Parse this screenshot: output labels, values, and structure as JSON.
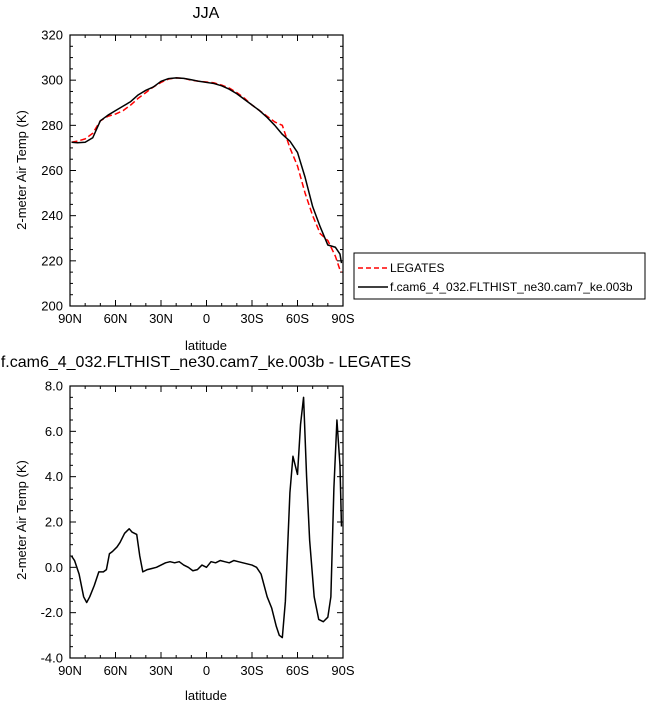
{
  "chart_data": [
    {
      "type": "line",
      "title": "JJA",
      "xlabel": "latitude",
      "ylabel": "2-meter Air Temp (K)",
      "xlim": [
        90,
        -90
      ],
      "ylim": [
        200,
        320
      ],
      "xticks": [
        90,
        60,
        30,
        0,
        -30,
        -60,
        -90
      ],
      "xtick_labels": [
        "90N",
        "60N",
        "30N",
        "0",
        "30S",
        "60S",
        "90S"
      ],
      "yticks": [
        200,
        220,
        240,
        260,
        280,
        300,
        320
      ],
      "ytick_labels": [
        "200",
        "220",
        "240",
        "260",
        "280",
        "300",
        "320"
      ],
      "legend_position": "outside-right",
      "series": [
        {
          "name": "LEGATES",
          "color": "#ff0000",
          "dash": "dashed",
          "points": [
            [
              89,
              272.5
            ],
            [
              85,
              273
            ],
            [
              80,
              274
            ],
            [
              75,
              276.5
            ],
            [
              70,
              282
            ],
            [
              65,
              284
            ],
            [
              60,
              285
            ],
            [
              55,
              286.5
            ],
            [
              50,
              289
            ],
            [
              45,
              292
            ],
            [
              40,
              294.5
            ],
            [
              35,
              297
            ],
            [
              30,
              299
            ],
            [
              25,
              300.5
            ],
            [
              20,
              301
            ],
            [
              15,
              300.8
            ],
            [
              10,
              300
            ],
            [
              5,
              299.5
            ],
            [
              0,
              299.2
            ],
            [
              -5,
              298.8
            ],
            [
              -10,
              297.8
            ],
            [
              -15,
              296.5
            ],
            [
              -20,
              294.5
            ],
            [
              -25,
              292
            ],
            [
              -30,
              289
            ],
            [
              -35,
              286.5
            ],
            [
              -40,
              284
            ],
            [
              -45,
              281.5
            ],
            [
              -50,
              280
            ],
            [
              -55,
              270
            ],
            [
              -60,
              262
            ],
            [
              -65,
              250
            ],
            [
              -70,
              240
            ],
            [
              -75,
              232
            ],
            [
              -80,
              229
            ],
            [
              -85,
              222
            ],
            [
              -88,
              216
            ],
            [
              -89,
              215
            ]
          ]
        },
        {
          "name": "f.cam6_4_032.FLTHIST_ne30.cam7_ke.003b",
          "color": "#000000",
          "dash": "solid",
          "points": [
            [
              89,
              272.5
            ],
            [
              85,
              272.3
            ],
            [
              80,
              272.5
            ],
            [
              75,
              274.5
            ],
            [
              70,
              282
            ],
            [
              65,
              284.5
            ],
            [
              60,
              286.5
            ],
            [
              55,
              288.5
            ],
            [
              50,
              290.5
            ],
            [
              45,
              293.5
            ],
            [
              40,
              295.5
            ],
            [
              35,
              297
            ],
            [
              30,
              299.5
            ],
            [
              25,
              300.7
            ],
            [
              20,
              301
            ],
            [
              15,
              300.8
            ],
            [
              10,
              300.2
            ],
            [
              5,
              299.5
            ],
            [
              0,
              299
            ],
            [
              -5,
              298.5
            ],
            [
              -10,
              297.5
            ],
            [
              -15,
              296
            ],
            [
              -20,
              294
            ],
            [
              -25,
              291.5
            ],
            [
              -30,
              289
            ],
            [
              -35,
              286.5
            ],
            [
              -40,
              283.5
            ],
            [
              -45,
              280
            ],
            [
              -50,
              276
            ],
            [
              -55,
              273
            ],
            [
              -60,
              268
            ],
            [
              -65,
              257
            ],
            [
              -70,
              244
            ],
            [
              -75,
              235
            ],
            [
              -80,
              227
            ],
            [
              -85,
              226
            ],
            [
              -88,
              223
            ],
            [
              -89,
              219
            ]
          ]
        }
      ]
    },
    {
      "type": "line",
      "title": "f.cam6_4_032.FLTHIST_ne30.cam7_ke.003b - LEGATES",
      "xlabel": "latitude",
      "ylabel": "2-meter Air Temp (K)",
      "xlim": [
        90,
        -90
      ],
      "ylim": [
        -4,
        8
      ],
      "xticks": [
        90,
        60,
        30,
        0,
        -30,
        -60,
        -90
      ],
      "xtick_labels": [
        "90N",
        "60N",
        "30N",
        "0",
        "30S",
        "60S",
        "90S"
      ],
      "yticks": [
        -4,
        -2,
        0,
        2,
        4,
        6,
        8
      ],
      "ytick_labels": [
        "-4.0",
        "-2.0",
        "0.0",
        "2.0",
        "4.0",
        "6.0",
        "8.0"
      ],
      "series": [
        {
          "color": "#000000",
          "points": [
            [
              89,
              0.5
            ],
            [
              87,
              0.3
            ],
            [
              84,
              -0.3
            ],
            [
              81,
              -1.3
            ],
            [
              79,
              -1.55
            ],
            [
              77,
              -1.3
            ],
            [
              74,
              -0.8
            ],
            [
              71,
              -0.2
            ],
            [
              68,
              -0.2
            ],
            [
              66,
              -0.1
            ],
            [
              64,
              0.6
            ],
            [
              62,
              0.7
            ],
            [
              59,
              0.9
            ],
            [
              57,
              1.1
            ],
            [
              54,
              1.5
            ],
            [
              51,
              1.7
            ],
            [
              49,
              1.55
            ],
            [
              46,
              1.45
            ],
            [
              44,
              0.5
            ],
            [
              42,
              -0.2
            ],
            [
              39,
              -0.1
            ],
            [
              36,
              -0.05
            ],
            [
              33,
              0.0
            ],
            [
              30,
              0.1
            ],
            [
              27,
              0.2
            ],
            [
              24,
              0.25
            ],
            [
              21,
              0.2
            ],
            [
              18,
              0.25
            ],
            [
              15,
              0.1
            ],
            [
              12,
              0.0
            ],
            [
              9,
              -0.15
            ],
            [
              6,
              -0.1
            ],
            [
              3,
              0.1
            ],
            [
              0,
              0.0
            ],
            [
              -3,
              0.25
            ],
            [
              -6,
              0.2
            ],
            [
              -9,
              0.3
            ],
            [
              -12,
              0.25
            ],
            [
              -15,
              0.2
            ],
            [
              -18,
              0.3
            ],
            [
              -21,
              0.25
            ],
            [
              -24,
              0.2
            ],
            [
              -27,
              0.15
            ],
            [
              -30,
              0.1
            ],
            [
              -33,
              0.0
            ],
            [
              -36,
              -0.3
            ],
            [
              -40,
              -1.3
            ],
            [
              -43,
              -1.8
            ],
            [
              -46,
              -2.6
            ],
            [
              -48,
              -3.0
            ],
            [
              -50,
              -3.1
            ],
            [
              -52,
              -1.5
            ],
            [
              -55,
              3.3
            ],
            [
              -57,
              4.9
            ],
            [
              -60,
              4.1
            ],
            [
              -62,
              6.3
            ],
            [
              -64,
              7.5
            ],
            [
              -66,
              4.0
            ],
            [
              -68,
              1.2
            ],
            [
              -71,
              -1.3
            ],
            [
              -74,
              -2.3
            ],
            [
              -77,
              -2.4
            ],
            [
              -80,
              -2.2
            ],
            [
              -82,
              -1.3
            ],
            [
              -84,
              3.5
            ],
            [
              -86,
              6.5
            ],
            [
              -88,
              4.5
            ],
            [
              -89,
              1.8
            ]
          ]
        }
      ]
    }
  ]
}
